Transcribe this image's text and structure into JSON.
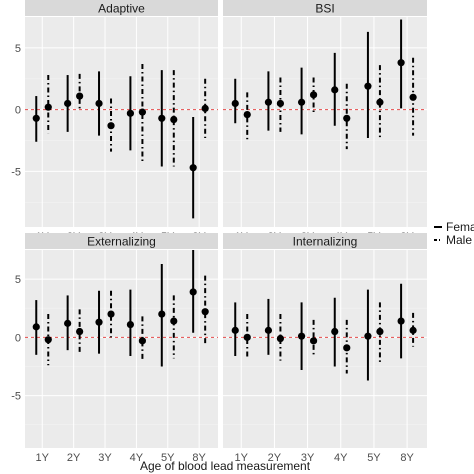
{
  "chart_data": {
    "type": "errorbar",
    "xlabel": "Age of  blood lead measurement",
    "ylabel": "",
    "categories": [
      "1Y",
      "2Y",
      "3Y",
      "4Y",
      "5Y",
      "8Y"
    ],
    "yticks": [
      "5",
      "0",
      "-5"
    ],
    "ytick_values": [
      5,
      0,
      -5
    ],
    "ylim": [
      -9.5,
      7.5
    ],
    "grid": true,
    "reference_line": {
      "y": 0,
      "color": "#e34a4a",
      "style": "dashed"
    },
    "legend": {
      "placement": "right",
      "entries": [
        {
          "label": "Fema",
          "style": "solid"
        },
        {
          "label": "Male",
          "style": "dashdot"
        }
      ]
    },
    "panels": [
      {
        "title": "Adaptive",
        "series": [
          {
            "name": "Fema",
            "points": [
              {
                "est": -0.7,
                "lo": -2.6,
                "hi": 1.1
              },
              {
                "est": 0.5,
                "lo": -1.8,
                "hi": 2.8
              },
              {
                "est": 0.5,
                "lo": -2.1,
                "hi": 3.1
              },
              {
                "est": -0.3,
                "lo": -3.3,
                "hi": 2.7
              },
              {
                "est": -0.7,
                "lo": -4.6,
                "hi": 3.2
              },
              {
                "est": -4.7,
                "lo": -8.8,
                "hi": -0.6
              }
            ]
          },
          {
            "name": "Male",
            "points": [
              {
                "est": 0.2,
                "lo": -1.9,
                "hi": 2.8
              },
              {
                "est": 1.1,
                "lo": 0.0,
                "hi": 2.9
              },
              {
                "est": -1.3,
                "lo": -3.4,
                "hi": 0.9
              },
              {
                "est": -0.2,
                "lo": -4.2,
                "hi": 3.7
              },
              {
                "est": -0.8,
                "lo": -4.6,
                "hi": 3.2
              },
              {
                "est": 0.1,
                "lo": -2.3,
                "hi": 2.5
              }
            ]
          }
        ]
      },
      {
        "title": "BSI",
        "series": [
          {
            "name": "Fema",
            "points": [
              {
                "est": 0.5,
                "lo": -1.1,
                "hi": 2.5
              },
              {
                "est": 0.6,
                "lo": -1.7,
                "hi": 3.1
              },
              {
                "est": 0.6,
                "lo": -2.0,
                "hi": 3.4
              },
              {
                "est": 1.6,
                "lo": -1.3,
                "hi": 4.6
              },
              {
                "est": 1.9,
                "lo": -2.3,
                "hi": 6.3
              },
              {
                "est": 3.8,
                "lo": 0.1,
                "hi": 7.3
              }
            ]
          },
          {
            "name": "Male",
            "points": [
              {
                "est": -0.4,
                "lo": -2.4,
                "hi": 1.4
              },
              {
                "est": 0.5,
                "lo": -1.8,
                "hi": 2.6
              },
              {
                "est": 1.2,
                "lo": -0.2,
                "hi": 2.6
              },
              {
                "est": -0.7,
                "lo": -3.2,
                "hi": 2.1
              },
              {
                "est": 0.6,
                "lo": -2.4,
                "hi": 3.6
              },
              {
                "est": 1.0,
                "lo": -2.1,
                "hi": 4.2
              }
            ]
          }
        ]
      },
      {
        "title": "Externalizing",
        "series": [
          {
            "name": "Fema",
            "points": [
              {
                "est": 0.9,
                "lo": -1.5,
                "hi": 3.2
              },
              {
                "est": 1.2,
                "lo": -1.1,
                "hi": 3.6
              },
              {
                "est": 1.3,
                "lo": -1.4,
                "hi": 4.0
              },
              {
                "est": 1.1,
                "lo": -1.6,
                "hi": 4.1
              },
              {
                "est": 2.0,
                "lo": -2.5,
                "hi": 6.3
              },
              {
                "est": 3.9,
                "lo": 0.4,
                "hi": 7.5
              }
            ]
          },
          {
            "name": "Male",
            "points": [
              {
                "est": -0.2,
                "lo": -2.4,
                "hi": 2.0
              },
              {
                "est": 0.5,
                "lo": -1.4,
                "hi": 2.4
              },
              {
                "est": 2.0,
                "lo": 0.0,
                "hi": 4.0
              },
              {
                "est": -0.3,
                "lo": -1.9,
                "hi": 1.8
              },
              {
                "est": 1.4,
                "lo": -1.8,
                "hi": 3.6
              },
              {
                "est": 2.2,
                "lo": -0.7,
                "hi": 5.3
              }
            ]
          }
        ]
      },
      {
        "title": "Internalizing",
        "series": [
          {
            "name": "Fema",
            "points": [
              {
                "est": 0.6,
                "lo": -1.6,
                "hi": 3.0
              },
              {
                "est": 0.6,
                "lo": -1.5,
                "hi": 3.3
              },
              {
                "est": 0.1,
                "lo": -2.8,
                "hi": 3.0
              },
              {
                "est": 0.5,
                "lo": -2.5,
                "hi": 3.4
              },
              {
                "est": 0.1,
                "lo": -3.7,
                "hi": 4.1
              },
              {
                "est": 1.4,
                "lo": -1.8,
                "hi": 4.6
              }
            ]
          },
          {
            "name": "Male",
            "points": [
              {
                "est": 0.0,
                "lo": -1.8,
                "hi": 2.0
              },
              {
                "est": -0.1,
                "lo": -2.0,
                "hi": 2.0
              },
              {
                "est": -0.3,
                "lo": -1.7,
                "hi": 1.5
              },
              {
                "est": -0.9,
                "lo": -3.1,
                "hi": 1.5
              },
              {
                "est": 0.5,
                "lo": -2.3,
                "hi": 3.0
              },
              {
                "est": 0.6,
                "lo": -0.8,
                "hi": 2.1
              }
            ]
          }
        ]
      }
    ]
  }
}
